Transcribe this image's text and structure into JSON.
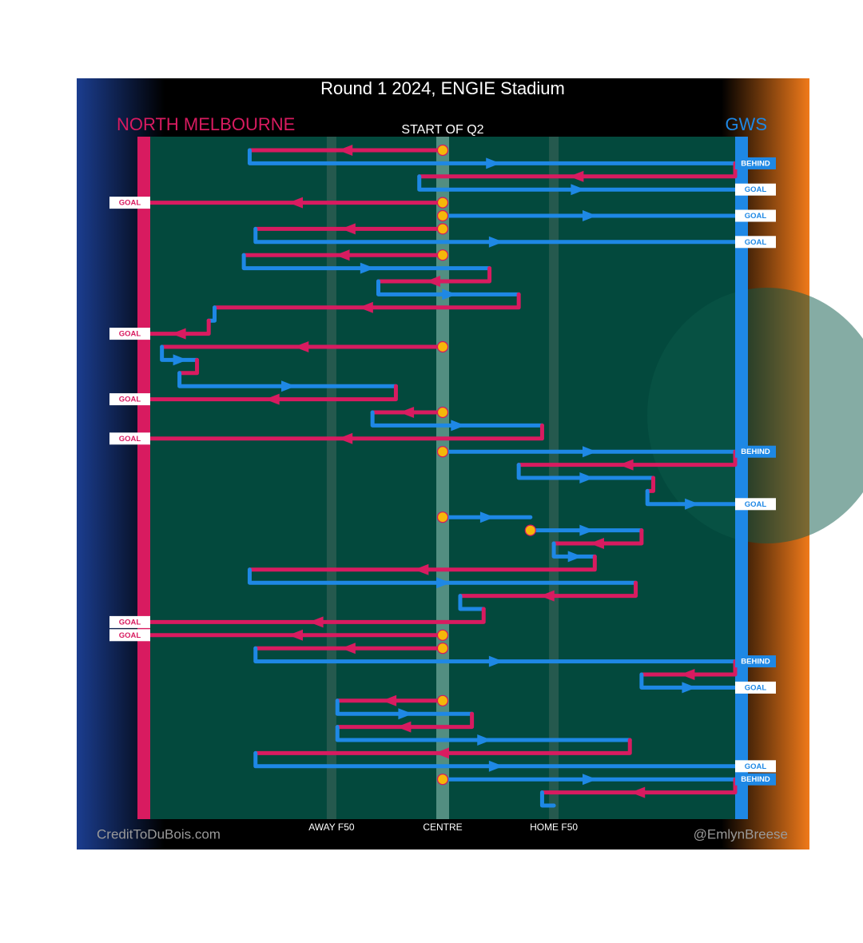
{
  "chart_data": {
    "type": "possession-chain",
    "title": "Round 1 2024, ENGIE Stadium",
    "subtitle": "START OF Q2",
    "credit_left": "CreditToDuBois.com",
    "credit_right": "@EmlynBreese",
    "teams": [
      {
        "name": "NORTH MELBOURNE",
        "color": "#d81b60"
      },
      {
        "name": "GWS",
        "color": "#1e88e5"
      }
    ],
    "xlim": [
      0,
      100
    ],
    "field_markers": [
      {
        "value": 31,
        "label": "AWAY F50"
      },
      {
        "value": 50,
        "label": "CENTRE"
      },
      {
        "value": 69,
        "label": "HOME F50"
      }
    ],
    "possessions": [
      {
        "team": "NORTH MELBOURNE",
        "start": 50,
        "end": 17,
        "bounce": true
      },
      {
        "team": "GWS",
        "start": 17,
        "end": 100,
        "result": "BEHIND"
      },
      {
        "team": "NORTH MELBOURNE",
        "start": 100,
        "end": 46
      },
      {
        "team": "GWS",
        "start": 46,
        "end": 100,
        "result": "GOAL"
      },
      {
        "team": "NORTH MELBOURNE",
        "start": 50,
        "end": 0,
        "bounce": true,
        "result": "GOAL"
      },
      {
        "team": "GWS",
        "start": 50,
        "end": 100,
        "bounce": true,
        "result": "GOAL"
      },
      {
        "team": "NORTH MELBOURNE",
        "start": 50,
        "end": 18,
        "bounce": true
      },
      {
        "team": "GWS",
        "start": 18,
        "end": 100,
        "result": "GOAL"
      },
      {
        "team": "NORTH MELBOURNE",
        "start": 50,
        "end": 16,
        "bounce": true
      },
      {
        "team": "GWS",
        "start": 16,
        "end": 58
      },
      {
        "team": "NORTH MELBOURNE",
        "start": 58,
        "end": 39
      },
      {
        "team": "GWS",
        "start": 39,
        "end": 63
      },
      {
        "team": "NORTH MELBOURNE",
        "start": 63,
        "end": 11
      },
      {
        "team": "GWS",
        "start": 11,
        "end": 10
      },
      {
        "team": "NORTH MELBOURNE",
        "start": 10,
        "end": 0,
        "result": "GOAL"
      },
      {
        "team": "NORTH MELBOURNE",
        "start": 50,
        "end": 2,
        "bounce": true
      },
      {
        "team": "GWS",
        "start": 2,
        "end": 8
      },
      {
        "team": "NORTH MELBOURNE",
        "start": 8,
        "end": 5
      },
      {
        "team": "GWS",
        "start": 5,
        "end": 42
      },
      {
        "team": "NORTH MELBOURNE",
        "start": 42,
        "end": 0,
        "result": "GOAL"
      },
      {
        "team": "NORTH MELBOURNE",
        "start": 50,
        "end": 38,
        "bounce": true
      },
      {
        "team": "GWS",
        "start": 38,
        "end": 67
      },
      {
        "team": "NORTH MELBOURNE",
        "start": 67,
        "end": 0,
        "result": "GOAL"
      },
      {
        "team": "GWS",
        "start": 50,
        "end": 100,
        "bounce": true,
        "result": "BEHIND"
      },
      {
        "team": "NORTH MELBOURNE",
        "start": 100,
        "end": 63
      },
      {
        "team": "GWS",
        "start": 63,
        "end": 86
      },
      {
        "team": "NORTH MELBOURNE",
        "start": 86,
        "end": 85
      },
      {
        "team": "GWS",
        "start": 85,
        "end": 100,
        "result": "GOAL"
      },
      {
        "team": "GWS",
        "start": 50,
        "end": 65,
        "bounce": true
      },
      {
        "team": "GWS",
        "start": 65,
        "end": 84,
        "bounce": true
      },
      {
        "team": "NORTH MELBOURNE",
        "start": 84,
        "end": 69
      },
      {
        "team": "GWS",
        "start": 69,
        "end": 76
      },
      {
        "team": "NORTH MELBOURNE",
        "start": 76,
        "end": 17
      },
      {
        "team": "GWS",
        "start": 17,
        "end": 83
      },
      {
        "team": "NORTH MELBOURNE",
        "start": 83,
        "end": 53
      },
      {
        "team": "GWS",
        "start": 53,
        "end": 57
      },
      {
        "team": "NORTH MELBOURNE",
        "start": 57,
        "end": 0,
        "result": "GOAL"
      },
      {
        "team": "NORTH MELBOURNE",
        "start": 50,
        "end": 0,
        "bounce": true,
        "result": "GOAL"
      },
      {
        "team": "NORTH MELBOURNE",
        "start": 50,
        "end": 18,
        "bounce": true
      },
      {
        "team": "GWS",
        "start": 18,
        "end": 100,
        "result": "BEHIND"
      },
      {
        "team": "NORTH MELBOURNE",
        "start": 100,
        "end": 84
      },
      {
        "team": "GWS",
        "start": 84,
        "end": 100,
        "result": "GOAL"
      },
      {
        "team": "NORTH MELBOURNE",
        "start": 50,
        "end": 32,
        "bounce": true
      },
      {
        "team": "GWS",
        "start": 32,
        "end": 55
      },
      {
        "team": "NORTH MELBOURNE",
        "start": 55,
        "end": 32
      },
      {
        "team": "GWS",
        "start": 32,
        "end": 82
      },
      {
        "team": "NORTH MELBOURNE",
        "start": 82,
        "end": 18
      },
      {
        "team": "GWS",
        "start": 18,
        "end": 100,
        "result": "GOAL"
      },
      {
        "team": "GWS",
        "start": 50,
        "end": 100,
        "bounce": true,
        "result": "BEHIND"
      },
      {
        "team": "NORTH MELBOURNE",
        "start": 100,
        "end": 67
      },
      {
        "team": "GWS",
        "start": 67,
        "end": 69
      }
    ]
  }
}
